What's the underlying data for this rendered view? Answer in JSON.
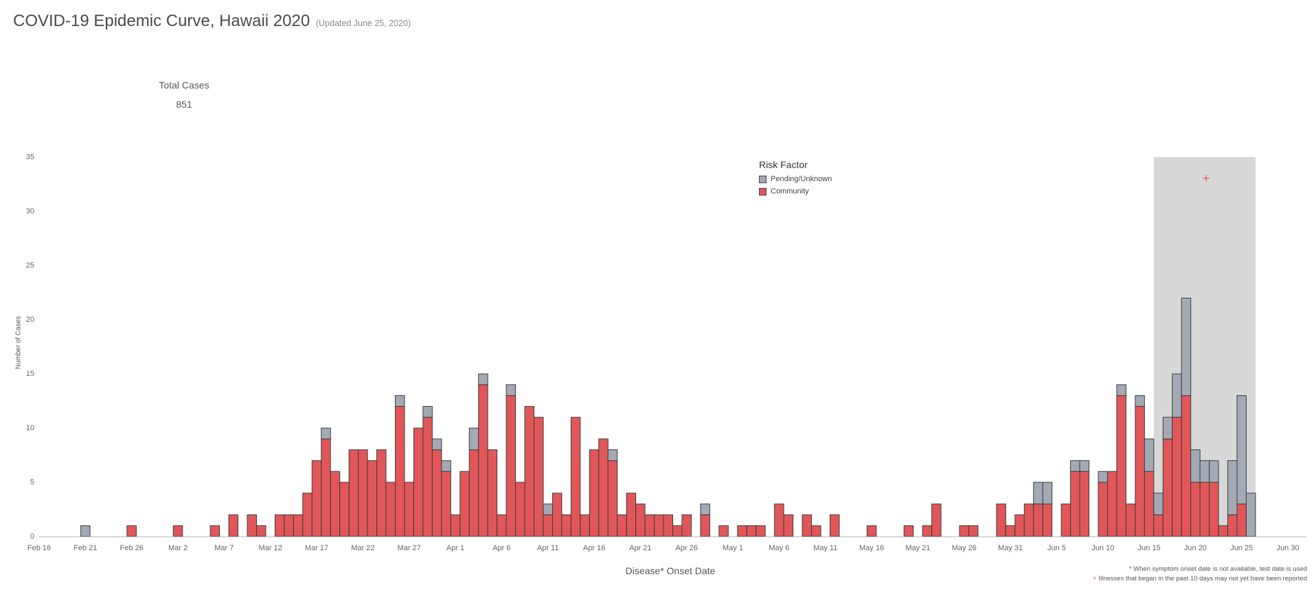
{
  "title": "COVID-19 Epidemic Curve, Hawaii 2020",
  "updated": "(Updated June 25, 2020)",
  "kpi": {
    "label": "Total Cases",
    "value": "851"
  },
  "colors": {
    "community": "#e15759",
    "pending": "#a3aab5",
    "outline": "#3b3b3b",
    "shade": "#d8d8d8",
    "plus": "#e15759"
  },
  "legend": {
    "title": "Risk Factor",
    "items": [
      "Pending/Unknown",
      "Community"
    ]
  },
  "recent_marker": "+",
  "footnotes": {
    "line1": "* When symptom onset date is not available, test date is used",
    "line2_marker": "+",
    "line2": " Illnesses that began in the past 10 days may not yet have been reported"
  },
  "chart_data": {
    "type": "bar",
    "stacked": true,
    "x_axis_type": "date",
    "xlabel": "Disease* Onset Date",
    "ylabel": "Number of Cases",
    "ylim": [
      0,
      35
    ],
    "yticks": [
      0,
      5,
      10,
      15,
      20,
      25,
      30,
      35
    ],
    "xlim": [
      "2020-02-16",
      "2020-07-02"
    ],
    "xticks": [
      {
        "date": "2020-02-16",
        "label": "Feb 16"
      },
      {
        "date": "2020-02-21",
        "label": "Feb 21"
      },
      {
        "date": "2020-02-26",
        "label": "Feb 26"
      },
      {
        "date": "2020-03-02",
        "label": "Mar 2"
      },
      {
        "date": "2020-03-07",
        "label": "Mar 7"
      },
      {
        "date": "2020-03-12",
        "label": "Mar 12"
      },
      {
        "date": "2020-03-17",
        "label": "Mar 17"
      },
      {
        "date": "2020-03-22",
        "label": "Mar 22"
      },
      {
        "date": "2020-03-27",
        "label": "Mar 27"
      },
      {
        "date": "2020-04-01",
        "label": "Apr 1"
      },
      {
        "date": "2020-04-06",
        "label": "Apr 6"
      },
      {
        "date": "2020-04-11",
        "label": "Apr 11"
      },
      {
        "date": "2020-04-16",
        "label": "Apr 16"
      },
      {
        "date": "2020-04-21",
        "label": "Apr 21"
      },
      {
        "date": "2020-04-26",
        "label": "Apr 26"
      },
      {
        "date": "2020-05-01",
        "label": "May 1"
      },
      {
        "date": "2020-05-06",
        "label": "May 6"
      },
      {
        "date": "2020-05-11",
        "label": "May 11"
      },
      {
        "date": "2020-05-16",
        "label": "May 16"
      },
      {
        "date": "2020-05-21",
        "label": "May 21"
      },
      {
        "date": "2020-05-26",
        "label": "May 26"
      },
      {
        "date": "2020-05-31",
        "label": "May 31"
      },
      {
        "date": "2020-06-05",
        "label": "Jun 5"
      },
      {
        "date": "2020-06-10",
        "label": "Jun 10"
      },
      {
        "date": "2020-06-15",
        "label": "Jun 15"
      },
      {
        "date": "2020-06-20",
        "label": "Jun 20"
      },
      {
        "date": "2020-06-25",
        "label": "Jun 25"
      },
      {
        "date": "2020-06-30",
        "label": "Jun 30"
      }
    ],
    "recent_period": [
      "2020-06-16",
      "2020-06-26"
    ],
    "legend_position": "top-center",
    "series": [
      {
        "name": "Community",
        "color": "#e15759",
        "data": [
          [
            "2020-02-26",
            1
          ],
          [
            "2020-03-02",
            1
          ],
          [
            "2020-03-06",
            1
          ],
          [
            "2020-03-08",
            2
          ],
          [
            "2020-03-10",
            2
          ],
          [
            "2020-03-11",
            1
          ],
          [
            "2020-03-13",
            2
          ],
          [
            "2020-03-14",
            2
          ],
          [
            "2020-03-15",
            2
          ],
          [
            "2020-03-16",
            4
          ],
          [
            "2020-03-17",
            7
          ],
          [
            "2020-03-18",
            9
          ],
          [
            "2020-03-19",
            6
          ],
          [
            "2020-03-20",
            5
          ],
          [
            "2020-03-21",
            8
          ],
          [
            "2020-03-22",
            8
          ],
          [
            "2020-03-23",
            7
          ],
          [
            "2020-03-24",
            8
          ],
          [
            "2020-03-25",
            5
          ],
          [
            "2020-03-26",
            12
          ],
          [
            "2020-03-27",
            5
          ],
          [
            "2020-03-28",
            10
          ],
          [
            "2020-03-29",
            11
          ],
          [
            "2020-03-30",
            8
          ],
          [
            "2020-03-31",
            6
          ],
          [
            "2020-04-01",
            2
          ],
          [
            "2020-04-02",
            6
          ],
          [
            "2020-04-03",
            8
          ],
          [
            "2020-04-04",
            14
          ],
          [
            "2020-04-05",
            8
          ],
          [
            "2020-04-06",
            2
          ],
          [
            "2020-04-07",
            13
          ],
          [
            "2020-04-08",
            5
          ],
          [
            "2020-04-09",
            12
          ],
          [
            "2020-04-10",
            11
          ],
          [
            "2020-04-11",
            2
          ],
          [
            "2020-04-12",
            4
          ],
          [
            "2020-04-13",
            2
          ],
          [
            "2020-04-14",
            11
          ],
          [
            "2020-04-15",
            2
          ],
          [
            "2020-04-16",
            8
          ],
          [
            "2020-04-17",
            9
          ],
          [
            "2020-04-18",
            7
          ],
          [
            "2020-04-19",
            2
          ],
          [
            "2020-04-20",
            4
          ],
          [
            "2020-04-21",
            3
          ],
          [
            "2020-04-22",
            2
          ],
          [
            "2020-04-23",
            2
          ],
          [
            "2020-04-24",
            2
          ],
          [
            "2020-04-25",
            1
          ],
          [
            "2020-04-26",
            2
          ],
          [
            "2020-04-28",
            2
          ],
          [
            "2020-04-30",
            1
          ],
          [
            "2020-05-02",
            1
          ],
          [
            "2020-05-03",
            1
          ],
          [
            "2020-05-04",
            1
          ],
          [
            "2020-05-06",
            3
          ],
          [
            "2020-05-07",
            2
          ],
          [
            "2020-05-09",
            2
          ],
          [
            "2020-05-10",
            1
          ],
          [
            "2020-05-12",
            2
          ],
          [
            "2020-05-16",
            1
          ],
          [
            "2020-05-20",
            1
          ],
          [
            "2020-05-22",
            1
          ],
          [
            "2020-05-23",
            3
          ],
          [
            "2020-05-26",
            1
          ],
          [
            "2020-05-27",
            1
          ],
          [
            "2020-05-30",
            3
          ],
          [
            "2020-05-31",
            1
          ],
          [
            "2020-06-01",
            2
          ],
          [
            "2020-06-02",
            3
          ],
          [
            "2020-06-03",
            3
          ],
          [
            "2020-06-04",
            3
          ],
          [
            "2020-06-06",
            3
          ],
          [
            "2020-06-07",
            6
          ],
          [
            "2020-06-08",
            6
          ],
          [
            "2020-06-10",
            5
          ],
          [
            "2020-06-11",
            6
          ],
          [
            "2020-06-12",
            13
          ],
          [
            "2020-06-13",
            3
          ],
          [
            "2020-06-14",
            12
          ],
          [
            "2020-06-15",
            6
          ],
          [
            "2020-06-16",
            2
          ],
          [
            "2020-06-17",
            9
          ],
          [
            "2020-06-18",
            11
          ],
          [
            "2020-06-19",
            13
          ],
          [
            "2020-06-20",
            5
          ],
          [
            "2020-06-21",
            5
          ],
          [
            "2020-06-22",
            5
          ],
          [
            "2020-06-23",
            1
          ],
          [
            "2020-06-24",
            2
          ],
          [
            "2020-06-25",
            3
          ]
        ]
      },
      {
        "name": "Pending/Unknown",
        "color": "#a3aab5",
        "data": [
          [
            "2020-02-21",
            1
          ],
          [
            "2020-03-18",
            1
          ],
          [
            "2020-03-26",
            1
          ],
          [
            "2020-03-29",
            1
          ],
          [
            "2020-03-30",
            1
          ],
          [
            "2020-03-31",
            1
          ],
          [
            "2020-04-03",
            2
          ],
          [
            "2020-04-04",
            1
          ],
          [
            "2020-04-07",
            1
          ],
          [
            "2020-04-11",
            1
          ],
          [
            "2020-04-18",
            1
          ],
          [
            "2020-04-28",
            1
          ],
          [
            "2020-06-03",
            2
          ],
          [
            "2020-06-04",
            2
          ],
          [
            "2020-06-07",
            1
          ],
          [
            "2020-06-08",
            1
          ],
          [
            "2020-06-10",
            1
          ],
          [
            "2020-06-12",
            1
          ],
          [
            "2020-06-14",
            1
          ],
          [
            "2020-06-15",
            3
          ],
          [
            "2020-06-16",
            2
          ],
          [
            "2020-06-17",
            2
          ],
          [
            "2020-06-18",
            4
          ],
          [
            "2020-06-19",
            9
          ],
          [
            "2020-06-20",
            3
          ],
          [
            "2020-06-21",
            2
          ],
          [
            "2020-06-22",
            2
          ],
          [
            "2020-06-24",
            5
          ],
          [
            "2020-06-25",
            10
          ],
          [
            "2020-06-26",
            4
          ]
        ]
      }
    ]
  }
}
